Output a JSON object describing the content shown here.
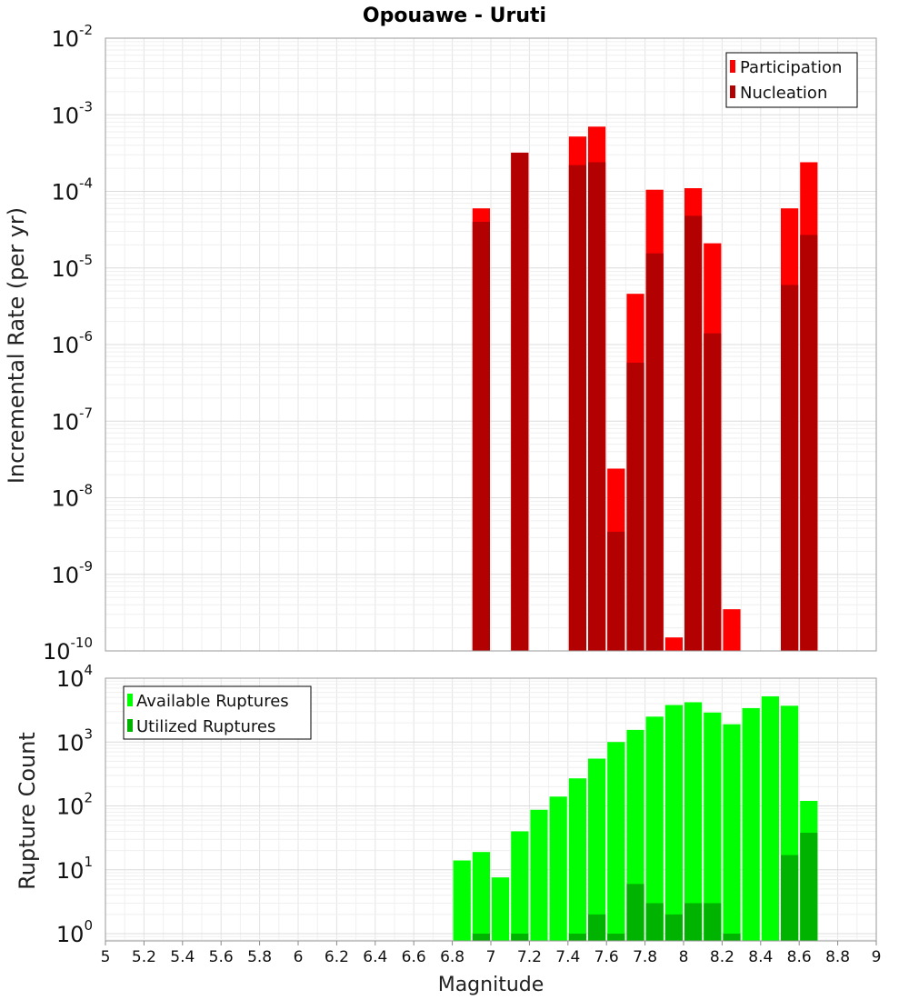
{
  "chart_data": [
    {
      "type": "bar",
      "title": "Opouawe - Uruti",
      "ylabel": "Incremental Rate (per yr)",
      "xlabel": "",
      "yscale": "log",
      "ylim": [
        1e-10,
        0.01
      ],
      "xlim": [
        5,
        9
      ],
      "yticks": [
        {
          "base": "10",
          "exp": "-10",
          "value": 1e-10
        },
        {
          "base": "10",
          "exp": "-9",
          "value": 1e-09
        },
        {
          "base": "10",
          "exp": "-8",
          "value": 1e-08
        },
        {
          "base": "10",
          "exp": "-7",
          "value": 1e-07
        },
        {
          "base": "10",
          "exp": "-6",
          "value": 1e-06
        },
        {
          "base": "10",
          "exp": "-5",
          "value": 1e-05
        },
        {
          "base": "10",
          "exp": "-4",
          "value": 0.0001
        },
        {
          "base": "10",
          "exp": "-3",
          "value": 0.001
        },
        {
          "base": "10",
          "exp": "-2",
          "value": 0.01
        }
      ],
      "legend_position": "top-right",
      "series": [
        {
          "name": "Participation",
          "color": "#ff0000",
          "points": [
            {
              "x": 6.95,
              "y": 6e-05
            },
            {
              "x": 7.15,
              "y": 0.00032
            },
            {
              "x": 7.45,
              "y": 0.00052
            },
            {
              "x": 7.55,
              "y": 0.0007
            },
            {
              "x": 7.65,
              "y": 2.4e-08
            },
            {
              "x": 7.75,
              "y": 4.6e-06
            },
            {
              "x": 7.85,
              "y": 0.000105
            },
            {
              "x": 7.95,
              "y": 1.5e-10
            },
            {
              "x": 8.05,
              "y": 0.00011
            },
            {
              "x": 8.15,
              "y": 2.1e-05
            },
            {
              "x": 8.25,
              "y": 3.5e-10
            },
            {
              "x": 8.55,
              "y": 6e-05
            },
            {
              "x": 8.65,
              "y": 0.00024
            }
          ]
        },
        {
          "name": "Nucleation",
          "color": "#b30000",
          "points": [
            {
              "x": 6.95,
              "y": 4e-05
            },
            {
              "x": 7.15,
              "y": 0.00032
            },
            {
              "x": 7.45,
              "y": 0.00022
            },
            {
              "x": 7.55,
              "y": 0.00024
            },
            {
              "x": 7.65,
              "y": 3.6e-09
            },
            {
              "x": 7.75,
              "y": 5.8e-07
            },
            {
              "x": 7.85,
              "y": 1.55e-05
            },
            {
              "x": 8.05,
              "y": 4.8e-05
            },
            {
              "x": 8.15,
              "y": 1.4e-06
            },
            {
              "x": 8.55,
              "y": 6e-06
            },
            {
              "x": 8.65,
              "y": 2.7e-05
            }
          ]
        }
      ]
    },
    {
      "type": "bar",
      "ylabel": "Rupture Count",
      "xlabel": "Magnitude",
      "yscale": "log",
      "ylim": [
        0.77,
        10000
      ],
      "xlim": [
        5,
        9
      ],
      "xticks": [
        "5",
        "5.2",
        "5.4",
        "5.6",
        "5.8",
        "6",
        "6.2",
        "6.4",
        "6.6",
        "6.8",
        "7",
        "7.2",
        "7.4",
        "7.6",
        "7.8",
        "8",
        "8.2",
        "8.4",
        "8.6",
        "8.8",
        "9"
      ],
      "yticks": [
        {
          "base": "10",
          "exp": "0",
          "value": 1
        },
        {
          "base": "10",
          "exp": "1",
          "value": 10
        },
        {
          "base": "10",
          "exp": "2",
          "value": 100
        },
        {
          "base": "10",
          "exp": "3",
          "value": 1000
        },
        {
          "base": "10",
          "exp": "4",
          "value": 10000
        }
      ],
      "legend_position": "top-left",
      "series": [
        {
          "name": "Available Ruptures",
          "color": "#00ff00",
          "points": [
            {
              "x": 6.85,
              "y": 14
            },
            {
              "x": 6.95,
              "y": 19
            },
            {
              "x": 7.05,
              "y": 7.6
            },
            {
              "x": 7.15,
              "y": 40
            },
            {
              "x": 7.25,
              "y": 87
            },
            {
              "x": 7.35,
              "y": 140
            },
            {
              "x": 7.45,
              "y": 270
            },
            {
              "x": 7.55,
              "y": 550
            },
            {
              "x": 7.65,
              "y": 1000
            },
            {
              "x": 7.75,
              "y": 1550
            },
            {
              "x": 7.85,
              "y": 2500
            },
            {
              "x": 7.95,
              "y": 3800
            },
            {
              "x": 8.05,
              "y": 4200
            },
            {
              "x": 8.15,
              "y": 2900
            },
            {
              "x": 8.25,
              "y": 1900
            },
            {
              "x": 8.35,
              "y": 3400
            },
            {
              "x": 8.45,
              "y": 5200
            },
            {
              "x": 8.55,
              "y": 3700
            },
            {
              "x": 8.65,
              "y": 120
            }
          ]
        },
        {
          "name": "Utilized Ruptures",
          "color": "#00b300",
          "points": [
            {
              "x": 6.95,
              "y": 1
            },
            {
              "x": 7.15,
              "y": 1
            },
            {
              "x": 7.45,
              "y": 1
            },
            {
              "x": 7.55,
              "y": 2
            },
            {
              "x": 7.65,
              "y": 1
            },
            {
              "x": 7.75,
              "y": 6
            },
            {
              "x": 7.85,
              "y": 3
            },
            {
              "x": 7.95,
              "y": 2
            },
            {
              "x": 8.05,
              "y": 3
            },
            {
              "x": 8.15,
              "y": 3
            },
            {
              "x": 8.25,
              "y": 1
            },
            {
              "x": 8.55,
              "y": 17
            },
            {
              "x": 8.65,
              "y": 38
            }
          ]
        }
      ]
    }
  ]
}
